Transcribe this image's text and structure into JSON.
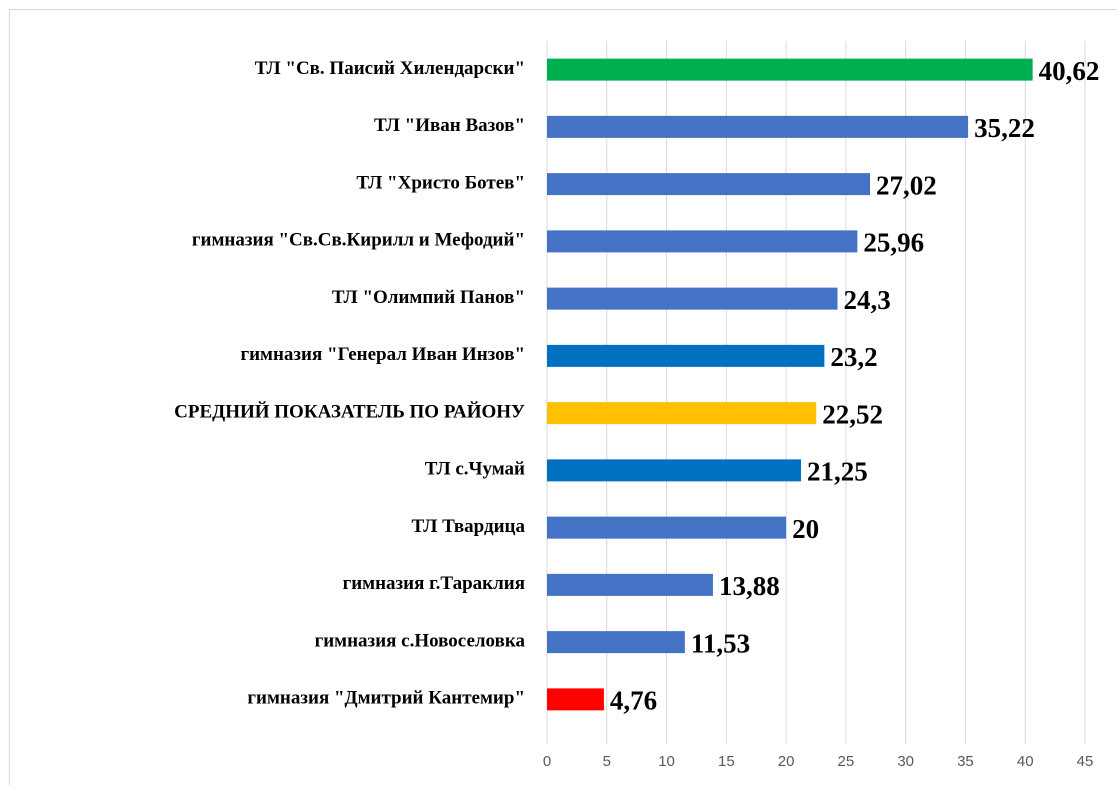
{
  "chart_data": {
    "type": "bar",
    "orientation": "horizontal",
    "categories": [
      "ТЛ \"Св. Паисий Хилендарски\"",
      "ТЛ \"Иван Вазов\"",
      "ТЛ \"Христо Ботев\"",
      "гимназия \"Св.Св.Кирилл и Мефодий\"",
      "ТЛ \"Олимпий Панов\"",
      "гимназия \"Генерал Иван Инзов\"",
      "СРЕДНИЙ ПОКАЗАТЕЛЬ ПО РАЙОНУ",
      "ТЛ с.Чумай",
      "ТЛ Твардица",
      "гимназия г.Тараклия",
      "гимназия с.Новоселовка",
      "гимназия \"Дмитрий Кантемир\""
    ],
    "values": [
      40.62,
      35.22,
      27.02,
      25.96,
      24.3,
      23.2,
      22.52,
      21.25,
      20,
      13.88,
      11.53,
      4.76
    ],
    "value_labels": [
      "40,62",
      "35,22",
      "27,02",
      "25,96",
      "24,3",
      "23,2",
      "22,52",
      "21,25",
      "20",
      "13,88",
      "11,53",
      "4,76"
    ],
    "colors": [
      "#00b050",
      "#4472c4",
      "#4472c4",
      "#4472c4",
      "#4472c4",
      "#0070c0",
      "#ffc000",
      "#0070c0",
      "#4472c4",
      "#4472c4",
      "#4472c4",
      "#ff0000"
    ],
    "xlim": [
      0,
      45
    ],
    "xticks": [
      0,
      5,
      10,
      15,
      20,
      25,
      30,
      35,
      40,
      45
    ],
    "grid": true
  }
}
